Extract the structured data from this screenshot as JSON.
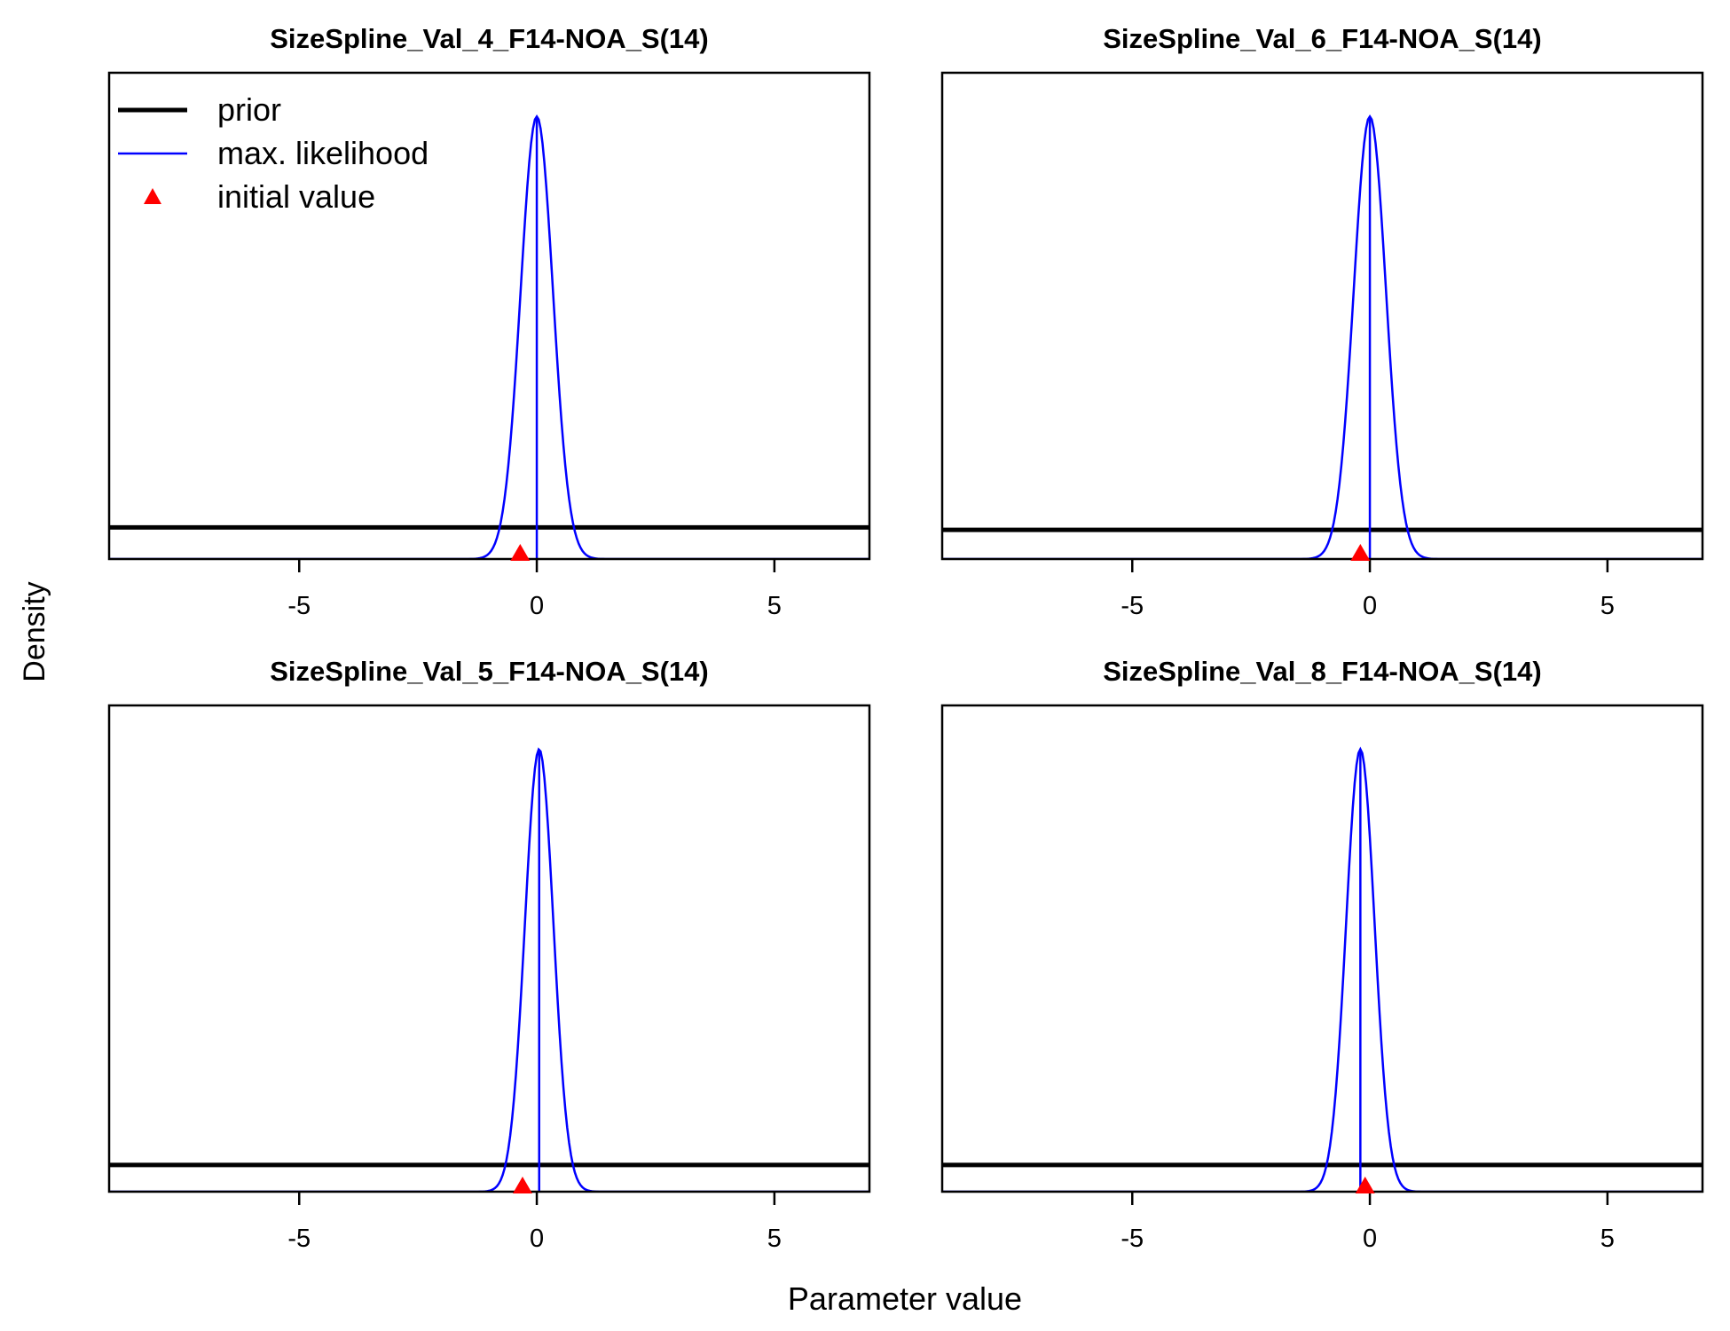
{
  "figure": {
    "xlabel": "Parameter value",
    "ylabel": "Density"
  },
  "legend": {
    "placement": "top-left of first panel",
    "items": [
      {
        "label": "prior",
        "color": "#000000",
        "kind": "line-thick"
      },
      {
        "label": "max. likelihood",
        "color": "#0000ff",
        "kind": "line-thin"
      },
      {
        "label": "initial value",
        "color": "#ff0000",
        "kind": "triangle"
      }
    ]
  },
  "colors": {
    "prior": "#000000",
    "mle": "#0000ff",
    "initial": "#ff0000"
  },
  "chart_data": [
    {
      "type": "line",
      "title": "SizeSpline_Val_4_F14-NOA_S(14)",
      "xlim": [
        -9,
        7
      ],
      "ticks": [
        -5,
        0,
        5
      ],
      "tick_labels": [
        "-5",
        "0",
        "5"
      ],
      "prior_level": 0.065,
      "mle": {
        "mean": 0.0,
        "sd": 0.34,
        "peak": 0.91
      },
      "initial_value": -0.35
    },
    {
      "type": "line",
      "title": "SizeSpline_Val_6_F14-NOA_S(14)",
      "xlim": [
        -9,
        7
      ],
      "ticks": [
        -5,
        0,
        5
      ],
      "tick_labels": [
        "-5",
        "0",
        "5"
      ],
      "prior_level": 0.06,
      "mle": {
        "mean": 0.0,
        "sd": 0.34,
        "peak": 0.91
      },
      "initial_value": -0.2
    },
    {
      "type": "line",
      "title": "SizeSpline_Val_5_F14-NOA_S(14)",
      "xlim": [
        -9,
        7
      ],
      "ticks": [
        -5,
        0,
        5
      ],
      "tick_labels": [
        "-5",
        "0",
        "5"
      ],
      "prior_level": 0.055,
      "mle": {
        "mean": 0.05,
        "sd": 0.3,
        "peak": 0.91
      },
      "initial_value": -0.3
    },
    {
      "type": "line",
      "title": "SizeSpline_Val_8_F14-NOA_S(14)",
      "xlim": [
        -9,
        7
      ],
      "ticks": [
        -5,
        0,
        5
      ],
      "tick_labels": [
        "-5",
        "0",
        "5"
      ],
      "prior_level": 0.055,
      "mle": {
        "mean": -0.2,
        "sd": 0.3,
        "peak": 0.91
      },
      "initial_value": -0.1
    }
  ]
}
